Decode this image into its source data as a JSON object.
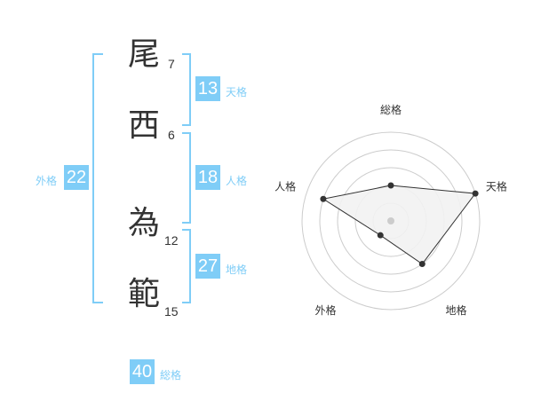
{
  "name": {
    "chars": [
      {
        "char": "尾",
        "strokes": "7"
      },
      {
        "char": "西",
        "strokes": "6"
      },
      {
        "char": "為",
        "strokes": "12"
      },
      {
        "char": "範",
        "strokes": "15"
      }
    ]
  },
  "fortunes": {
    "tenkaku": {
      "label": "天格",
      "value": "13"
    },
    "jinkaku": {
      "label": "人格",
      "value": "18"
    },
    "chikaku": {
      "label": "地格",
      "value": "27"
    },
    "gaikaku": {
      "label": "外格",
      "value": "22"
    },
    "soukaku": {
      "label": "総格",
      "value": "40"
    }
  },
  "colors": {
    "accent": "#7fcdf7",
    "text": "#333333",
    "fill": "#f2f2f2"
  },
  "chart_data": {
    "type": "radar",
    "axes": [
      "総格",
      "天格",
      "地格",
      "外格",
      "人格"
    ],
    "values": [
      2,
      5,
      3,
      1,
      4
    ],
    "range": [
      0,
      5
    ],
    "rings": 5
  }
}
